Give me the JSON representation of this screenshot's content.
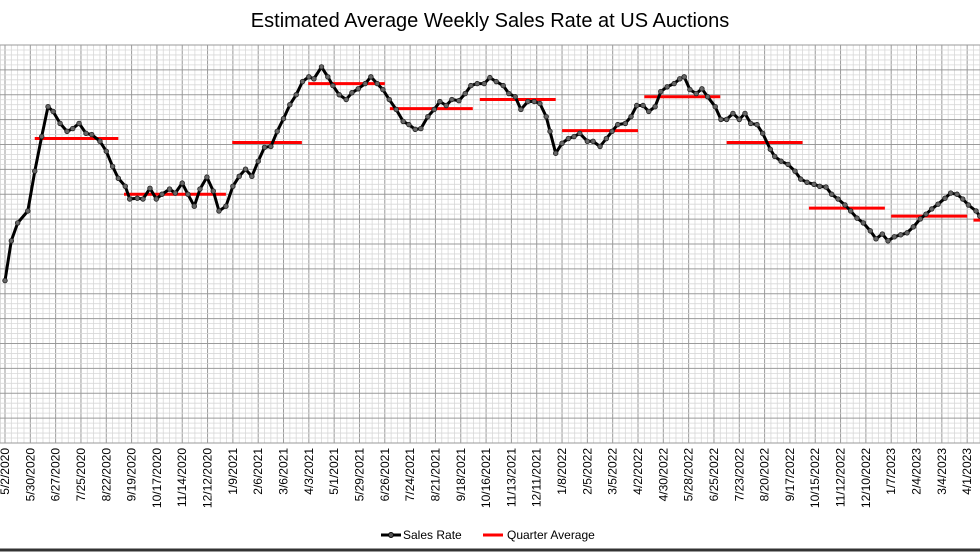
{
  "chart_data": {
    "type": "line",
    "title": "Estimated Average Weekly Sales Rate at US Auctions",
    "xlabel": "",
    "ylabel": "",
    "x_unit": "weeks since 5/2/2020",
    "ylim": [
      0,
      100
    ],
    "xlim": [
      0,
      155
    ],
    "grid": true,
    "legend_position": "bottom-right",
    "tick_labels": [
      "5/2/2020",
      "5/30/2020",
      "6/27/2020",
      "7/25/2020",
      "8/22/2020",
      "9/19/2020",
      "10/17/2020",
      "11/14/2020",
      "12/12/2020",
      "1/9/2021",
      "2/6/2021",
      "3/6/2021",
      "4/3/2021",
      "5/1/2021",
      "5/29/2021",
      "6/26/2021",
      "7/24/2021",
      "8/21/2021",
      "9/18/2021",
      "10/16/2021",
      "11/13/2021",
      "12/11/2021",
      "1/8/2022",
      "2/5/2022",
      "3/5/2022",
      "4/2/2022",
      "4/30/2022",
      "5/28/2022",
      "6/25/2022",
      "7/23/2022",
      "8/20/2022",
      "9/17/2022",
      "10/15/2022",
      "11/12/2022",
      "12/10/2022",
      "1/7/2023",
      "2/4/2023",
      "3/4/2023",
      "4/1/2023"
    ],
    "series": [
      {
        "name": "Sales Rate",
        "color": "#000000",
        "points": [
          [
            0,
            40.8
          ],
          [
            1,
            50.8
          ],
          [
            2,
            55.3
          ],
          [
            3.6,
            58.3
          ],
          [
            4.7,
            68.3
          ],
          [
            5.8,
            77
          ],
          [
            6.8,
            84.5
          ],
          [
            7.6,
            83.3
          ],
          [
            8.7,
            80.3
          ],
          [
            9.8,
            78.3
          ],
          [
            10.7,
            79
          ],
          [
            11.7,
            80.3
          ],
          [
            12.8,
            77.8
          ],
          [
            13.7,
            77.5
          ],
          [
            15,
            75.8
          ],
          [
            16,
            73.3
          ],
          [
            17,
            69.5
          ],
          [
            17.9,
            66.5
          ],
          [
            19,
            64.5
          ],
          [
            19.7,
            61.3
          ],
          [
            20.9,
            61.5
          ],
          [
            21.8,
            61.3
          ],
          [
            22.9,
            64
          ],
          [
            23.9,
            61.3
          ],
          [
            24.8,
            62.5
          ],
          [
            26,
            63.8
          ],
          [
            26.9,
            62.8
          ],
          [
            28,
            65.3
          ],
          [
            28.9,
            62.5
          ],
          [
            29.9,
            59.5
          ],
          [
            30.8,
            63.8
          ],
          [
            31.9,
            66.8
          ],
          [
            32.9,
            63.3
          ],
          [
            33.8,
            58.3
          ],
          [
            34.9,
            59.5
          ],
          [
            36,
            64.5
          ],
          [
            37,
            67
          ],
          [
            38,
            68.8
          ],
          [
            39,
            67
          ],
          [
            40,
            70.8
          ],
          [
            41,
            74.3
          ],
          [
            42,
            74.5
          ],
          [
            43,
            78.3
          ],
          [
            44,
            81.5
          ],
          [
            45,
            85
          ],
          [
            46,
            87.5
          ],
          [
            47,
            90.8
          ],
          [
            48,
            92
          ],
          [
            48.8,
            91.5
          ],
          [
            50,
            94.5
          ],
          [
            51,
            92
          ],
          [
            51.8,
            89.8
          ],
          [
            52.8,
            87.5
          ],
          [
            53.9,
            86.3
          ],
          [
            54.8,
            88
          ],
          [
            55.8,
            89
          ],
          [
            56.9,
            90.3
          ],
          [
            57.8,
            92
          ],
          [
            58.8,
            90.3
          ],
          [
            59.7,
            88.8
          ],
          [
            60.7,
            86.3
          ],
          [
            61.8,
            83.8
          ],
          [
            62.9,
            80.8
          ],
          [
            63.8,
            80
          ],
          [
            64.8,
            78.8
          ],
          [
            65.7,
            79
          ],
          [
            66.8,
            82
          ],
          [
            67.8,
            83.8
          ],
          [
            68.7,
            85.8
          ],
          [
            69.7,
            84.8
          ],
          [
            70.6,
            86.3
          ],
          [
            71.7,
            86
          ],
          [
            72.7,
            87.8
          ],
          [
            73.6,
            89.8
          ],
          [
            74.6,
            90.3
          ],
          [
            75.7,
            90.3
          ],
          [
            76.6,
            91.8
          ],
          [
            77.6,
            90.8
          ],
          [
            78.7,
            89.8
          ],
          [
            79.6,
            87.8
          ],
          [
            80.6,
            87
          ],
          [
            81.5,
            83.8
          ],
          [
            82.6,
            85.8
          ],
          [
            83.6,
            85.8
          ],
          [
            84.5,
            85.3
          ],
          [
            85.5,
            82
          ],
          [
            86.1,
            78.3
          ],
          [
            87,
            72.8
          ],
          [
            88,
            75.3
          ],
          [
            89,
            76.5
          ],
          [
            89.9,
            77
          ],
          [
            90.8,
            77.8
          ],
          [
            92,
            75.8
          ],
          [
            92.9,
            75.8
          ],
          [
            94,
            74.5
          ],
          [
            95,
            76.5
          ],
          [
            95.9,
            78.3
          ],
          [
            96.8,
            80
          ],
          [
            98,
            80.3
          ],
          [
            98.9,
            82
          ],
          [
            99.8,
            84.8
          ],
          [
            100.8,
            84.8
          ],
          [
            101.7,
            83.3
          ],
          [
            102.7,
            84.5
          ],
          [
            103.6,
            88.3
          ],
          [
            104.6,
            89.5
          ],
          [
            105.7,
            90.3
          ],
          [
            106.6,
            91.5
          ],
          [
            107.3,
            92
          ],
          [
            108.2,
            88.8
          ],
          [
            109.2,
            87.8
          ],
          [
            110.1,
            89
          ],
          [
            111,
            87
          ],
          [
            112.2,
            84.5
          ],
          [
            113.1,
            81.3
          ],
          [
            114,
            81.3
          ],
          [
            115,
            82.8
          ],
          [
            116,
            81.3
          ],
          [
            116.9,
            82.8
          ],
          [
            117.8,
            80.3
          ],
          [
            118.8,
            80
          ],
          [
            119.7,
            77.8
          ],
          [
            120.9,
            73.8
          ],
          [
            121.6,
            72
          ],
          [
            122.6,
            70.8
          ],
          [
            123.7,
            70
          ],
          [
            124.8,
            68.3
          ],
          [
            125.7,
            66.3
          ],
          [
            126.7,
            65.5
          ],
          [
            127.8,
            65
          ],
          [
            128.7,
            64.5
          ],
          [
            129.7,
            64.3
          ],
          [
            130.6,
            62.5
          ],
          [
            131.6,
            61.3
          ],
          [
            132.7,
            59.8
          ],
          [
            133.6,
            58.3
          ],
          [
            134.6,
            56.5
          ],
          [
            135.6,
            55.3
          ],
          [
            136.7,
            53.3
          ],
          [
            137.6,
            51.3
          ],
          [
            138.6,
            52.5
          ],
          [
            139.5,
            50.8
          ],
          [
            140.5,
            51.8
          ],
          [
            141.5,
            52.3
          ],
          [
            142.5,
            52.8
          ],
          [
            143.5,
            54.3
          ],
          [
            144.6,
            56.3
          ],
          [
            145.5,
            57.5
          ],
          [
            146.4,
            58.8
          ],
          [
            147.4,
            60
          ],
          [
            148.5,
            61.5
          ],
          [
            149.4,
            62.8
          ],
          [
            150.4,
            62.5
          ],
          [
            151.3,
            61.3
          ],
          [
            152.2,
            59.8
          ],
          [
            153.4,
            58.3
          ],
          [
            154,
            57
          ]
        ]
      },
      {
        "name": "Quarter Average",
        "color": "#ff0000",
        "segments": [
          {
            "start": 4.7,
            "end": 17.9,
            "value": 76.5
          },
          {
            "start": 18.8,
            "end": 34.9,
            "value": 62.5
          },
          {
            "start": 35.9,
            "end": 46.9,
            "value": 75.5
          },
          {
            "start": 47.9,
            "end": 60,
            "value": 90.3
          },
          {
            "start": 60.8,
            "end": 73.9,
            "value": 84
          },
          {
            "start": 75,
            "end": 87,
            "value": 86.3
          },
          {
            "start": 88,
            "end": 100,
            "value": 78.5
          },
          {
            "start": 101,
            "end": 113,
            "value": 87
          },
          {
            "start": 114,
            "end": 126,
            "value": 75.5
          },
          {
            "start": 127,
            "end": 139,
            "value": 59
          },
          {
            "start": 140,
            "end": 152,
            "value": 57
          },
          {
            "start": 153,
            "end": 155,
            "value": 56
          }
        ]
      }
    ]
  }
}
